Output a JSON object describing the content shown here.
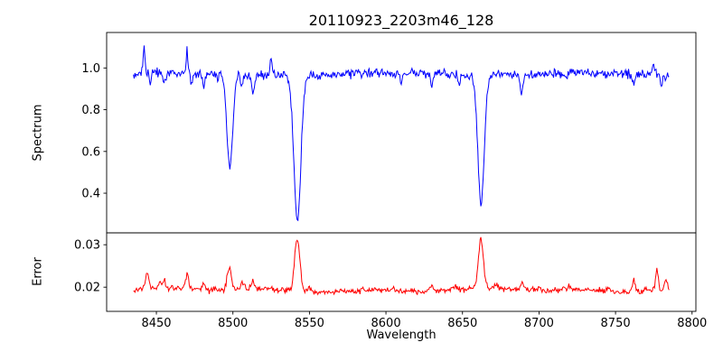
{
  "figure": {
    "background": "#ffffff"
  },
  "chart_data": [
    {
      "type": "line",
      "panel": "spectrum",
      "title": "20110923_2203m46_128",
      "ylabel": "Spectrum",
      "xlabel": "",
      "legend": "none",
      "grid": false,
      "color": "#0000ff",
      "xlim": [
        8417.5,
        8802.5
      ],
      "ylim": [
        0.21,
        1.17
      ],
      "yticks": [
        "0.4",
        "0.6",
        "0.8",
        "1.0"
      ],
      "x_start": 8435,
      "x_end": 8785,
      "x_step": 0.5,
      "baseline": 0.97,
      "noise": 0.019,
      "wiggle": [
        0.005,
        21,
        0.003,
        7.3
      ],
      "seed": 20110923,
      "features_note": "Gaussian features: [center_wavelength, signed_amplitude (neg=absorption dip), sigma]; deep lines are the Ca II triplet 8498/8542/8662",
      "features": [
        [
          8442.0,
          0.135,
          0.6
        ],
        [
          8446.0,
          -0.05,
          0.7
        ],
        [
          8455.0,
          -0.045,
          0.8
        ],
        [
          8470.0,
          0.115,
          0.6
        ],
        [
          8473.0,
          -0.06,
          0.6
        ],
        [
          8481.0,
          -0.065,
          0.8
        ],
        [
          8490.0,
          -0.04,
          0.7
        ],
        [
          8498.0,
          -0.45,
          1.9
        ],
        [
          8506.0,
          -0.065,
          0.8
        ],
        [
          8513.0,
          -0.095,
          0.9
        ],
        [
          8525.0,
          0.085,
          0.6
        ],
        [
          8542.1,
          -0.7,
          2.3
        ],
        [
          8610.0,
          -0.04,
          0.7
        ],
        [
          8630.0,
          -0.05,
          0.8
        ],
        [
          8648.0,
          -0.04,
          0.7
        ],
        [
          8662.1,
          -0.61,
          2.1
        ],
        [
          8688.5,
          -0.09,
          0.8
        ],
        [
          8718.0,
          -0.035,
          0.7
        ],
        [
          8762.0,
          -0.05,
          0.8
        ],
        [
          8775.0,
          0.05,
          0.6
        ],
        [
          8780.0,
          -0.05,
          0.7
        ]
      ]
    },
    {
      "type": "line",
      "panel": "error",
      "ylabel": "Error",
      "xlabel": "Wavelength",
      "legend": "none",
      "grid": false,
      "color": "#ff0000",
      "xlim": [
        8417.5,
        8802.5
      ],
      "ylim": [
        0.0143,
        0.0328
      ],
      "yticks": [
        "0.02",
        "0.03"
      ],
      "xticks": [
        "8450",
        "8500",
        "8550",
        "8600",
        "8650",
        "8700",
        "8750",
        "8800"
      ],
      "x_start": 8435,
      "x_end": 8785,
      "x_step": 0.5,
      "baseline": 0.0193,
      "noise": 0.0006,
      "wiggle": [
        0.0003,
        30,
        0.0002,
        11
      ],
      "seed": 46128,
      "features_note": "Gaussian error peaks: [center_wavelength, amplitude_above_baseline, sigma]",
      "features": [
        [
          8444.0,
          0.0038,
          1.1
        ],
        [
          8452.0,
          0.0012,
          1.0
        ],
        [
          8455.0,
          0.0018,
          1.0
        ],
        [
          8470.0,
          0.0032,
          1.1
        ],
        [
          8481.0,
          0.0014,
          1.0
        ],
        [
          8497.5,
          0.005,
          1.4
        ],
        [
          8506.0,
          0.0016,
          1.0
        ],
        [
          8513.0,
          0.0015,
          1.0
        ],
        [
          8542.0,
          0.0125,
          1.7
        ],
        [
          8550.0,
          0.001,
          1.0
        ],
        [
          8585.0,
          0.0006,
          1.0
        ],
        [
          8605.0,
          0.0005,
          1.0
        ],
        [
          8630.0,
          0.0012,
          1.0
        ],
        [
          8645.0,
          0.0008,
          1.0
        ],
        [
          8662.0,
          0.0112,
          1.6
        ],
        [
          8672.0,
          0.001,
          1.0
        ],
        [
          8689.0,
          0.0018,
          1.0
        ],
        [
          8700.0,
          0.0008,
          1.0
        ],
        [
          8720.0,
          0.0006,
          1.0
        ],
        [
          8745.0,
          0.0008,
          1.0
        ],
        [
          8762.0,
          0.003,
          1.1
        ],
        [
          8770.0,
          0.0012,
          1.0
        ],
        [
          8777.0,
          0.005,
          1.0
        ],
        [
          8783.0,
          0.0026,
          1.0
        ]
      ]
    }
  ]
}
